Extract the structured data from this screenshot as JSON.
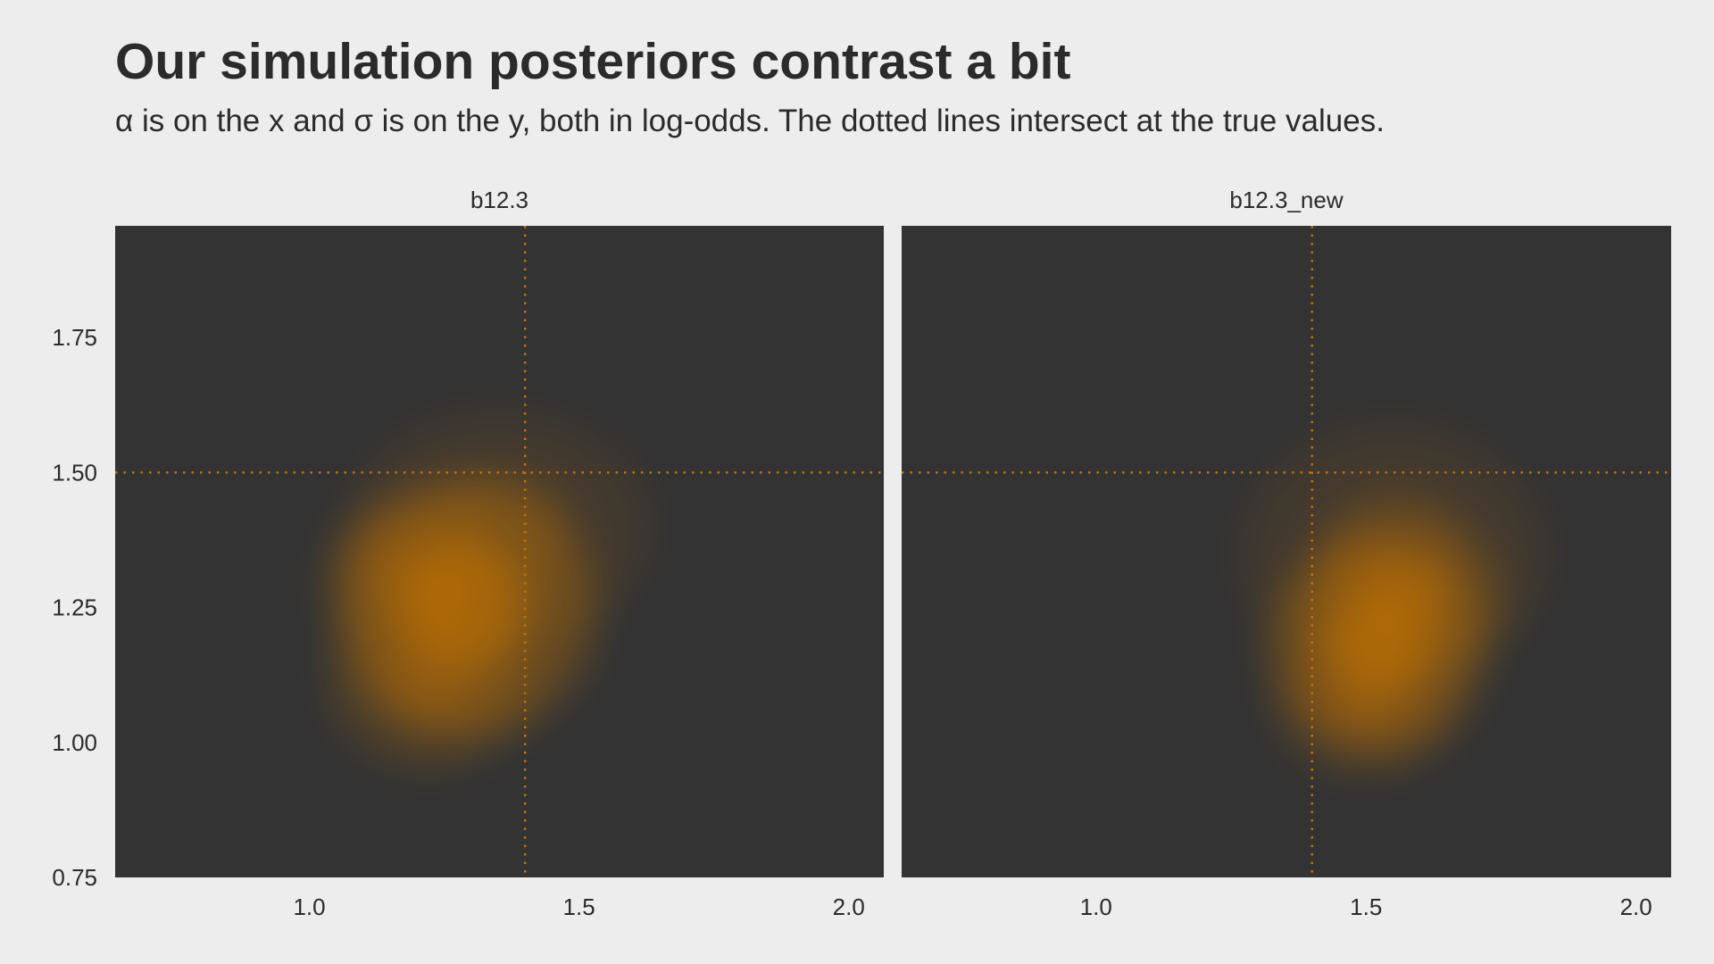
{
  "title": "Our simulation posteriors contrast a bit",
  "subtitle": "α is on the x and σ is on the y, both in log-odds. The dotted lines intersect at the true values.",
  "colors": {
    "page_background": "#ededed",
    "panel_background": "#333333",
    "density_fill": "#c27208",
    "reference_lines": "#c27208"
  },
  "chart_data": {
    "type": "heatmap",
    "subtype": "2d-density raster, faceted",
    "xlabel": "",
    "ylabel": "",
    "xlim": [
      0.64,
      2.065
    ],
    "ylim": [
      0.75,
      1.957
    ],
    "x_ticks": [
      1.0,
      1.5,
      2.0
    ],
    "x_tick_labels": [
      "1.0",
      "1.5",
      "2.0"
    ],
    "y_ticks": [
      0.75,
      1.0,
      1.25,
      1.5,
      1.75
    ],
    "y_tick_labels": [
      "0.75",
      "1.00",
      "1.25",
      "1.50",
      "1.75"
    ],
    "grid": false,
    "true_values": {
      "alpha": 1.4,
      "sigma": 1.5
    },
    "facets": [
      {
        "label": "b12.3",
        "density_peaks": [
          {
            "x": 1.29,
            "y": 1.25,
            "sx": 0.17,
            "sy": 0.17,
            "weight": 1.0
          },
          {
            "x": 1.2,
            "y": 1.31,
            "sx": 0.12,
            "sy": 0.1,
            "weight": 0.6
          },
          {
            "x": 1.22,
            "y": 1.12,
            "sx": 0.13,
            "sy": 0.12,
            "weight": 0.55
          },
          {
            "x": 1.35,
            "y": 1.4,
            "sx": 0.2,
            "sy": 0.15,
            "weight": 0.3
          }
        ]
      },
      {
        "label": "b12.3_new",
        "density_peaks": [
          {
            "x": 1.52,
            "y": 1.18,
            "sx": 0.14,
            "sy": 0.14,
            "weight": 1.0
          },
          {
            "x": 1.57,
            "y": 1.27,
            "sx": 0.13,
            "sy": 0.11,
            "weight": 0.7
          },
          {
            "x": 1.5,
            "y": 1.08,
            "sx": 0.12,
            "sy": 0.1,
            "weight": 0.5
          },
          {
            "x": 1.55,
            "y": 1.35,
            "sx": 0.2,
            "sy": 0.17,
            "weight": 0.3
          }
        ]
      }
    ]
  }
}
